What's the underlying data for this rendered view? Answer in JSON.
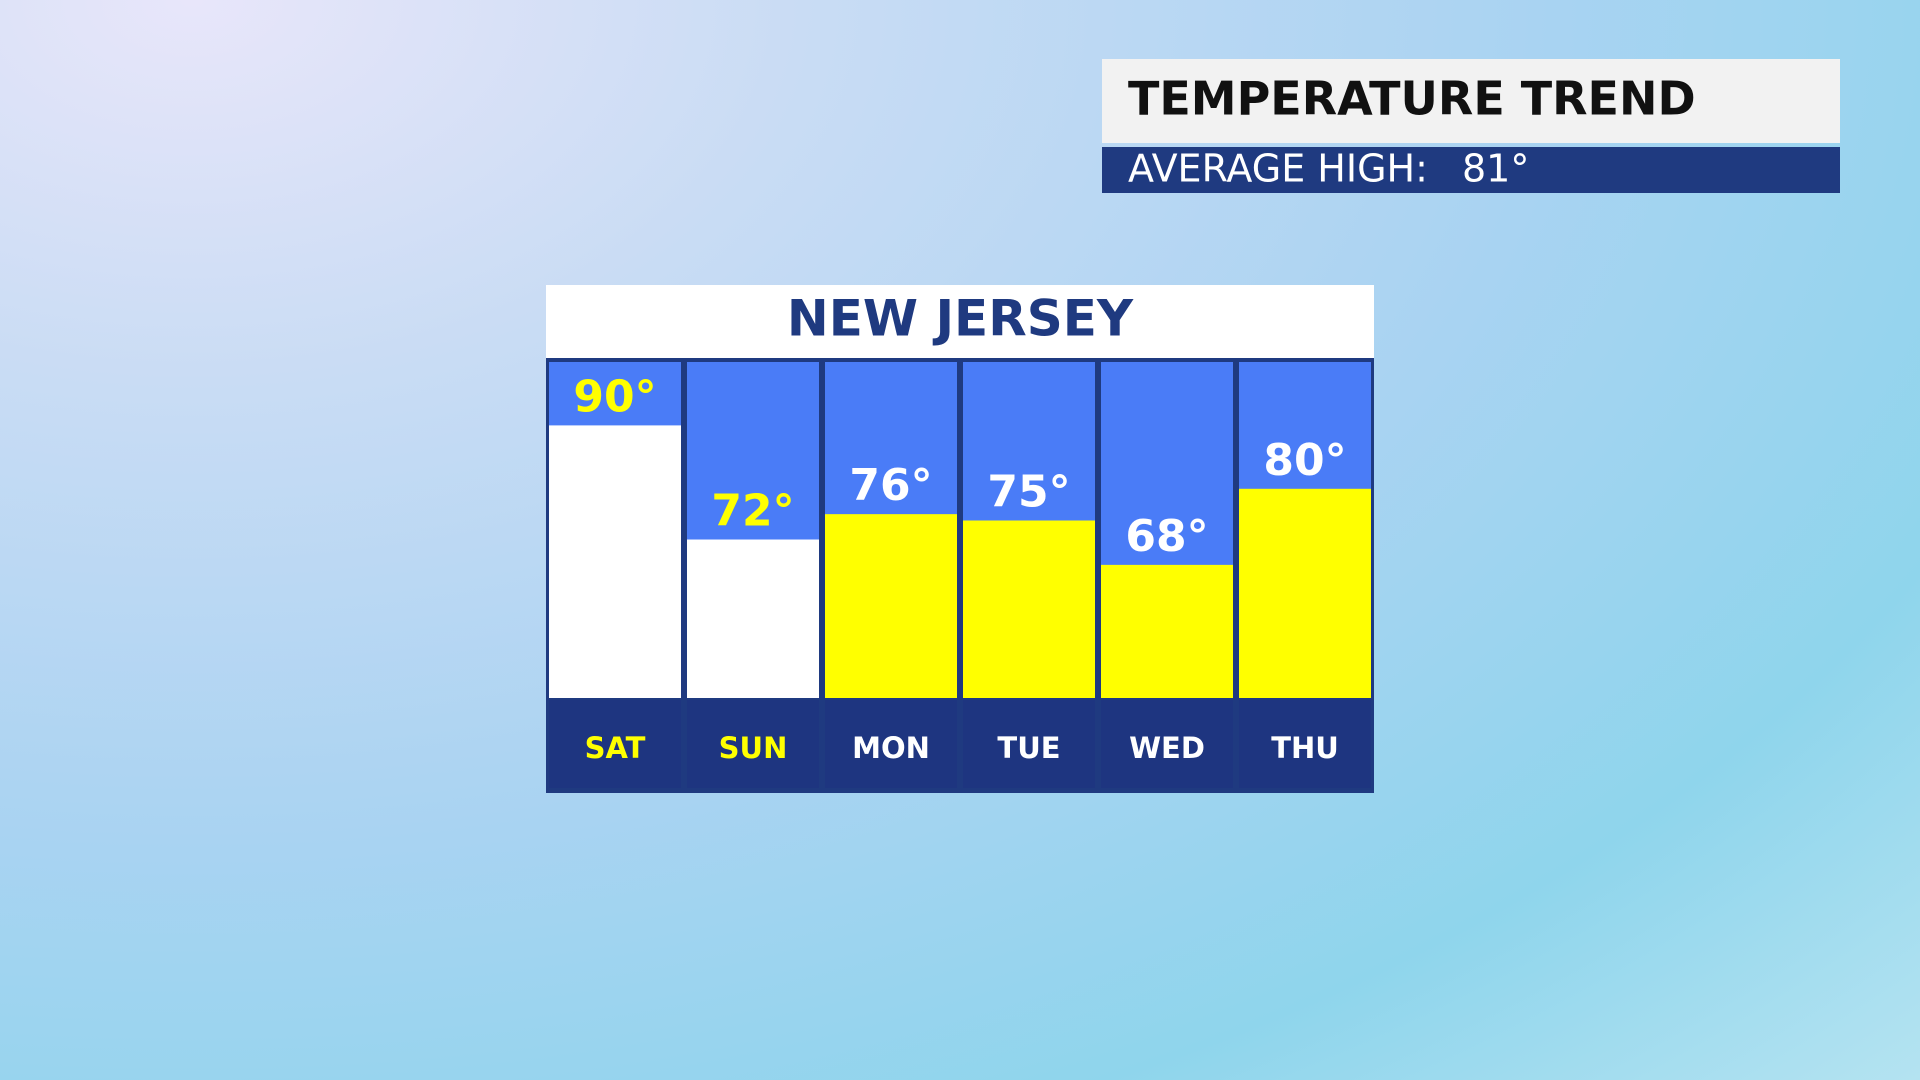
{
  "header": {
    "title": "TEMPERATURE TREND",
    "subtitle": "AVERAGE HIGH:",
    "reference": {
      "value": 81,
      "label": "81°"
    }
  },
  "chart_data": {
    "type": "bar",
    "title": "NEW JERSEY",
    "categories": [
      "SAT",
      "SUN",
      "MON",
      "TUE",
      "WED",
      "THU"
    ],
    "values": [
      90,
      72,
      76,
      75,
      68,
      80
    ],
    "value_labels": [
      "90°",
      "72°",
      "76°",
      "75°",
      "68°",
      "80°"
    ],
    "colors": [
      "#ffffff",
      "#ffffff",
      "#ffff00",
      "#ffff00",
      "#ffff00",
      "#ffff00"
    ],
    "label_colors": [
      "#ffff00",
      "#ffff00",
      "#ffffff",
      "#ffffff",
      "#ffffff",
      "#ffffff"
    ],
    "ylim": [
      47,
      100
    ]
  }
}
